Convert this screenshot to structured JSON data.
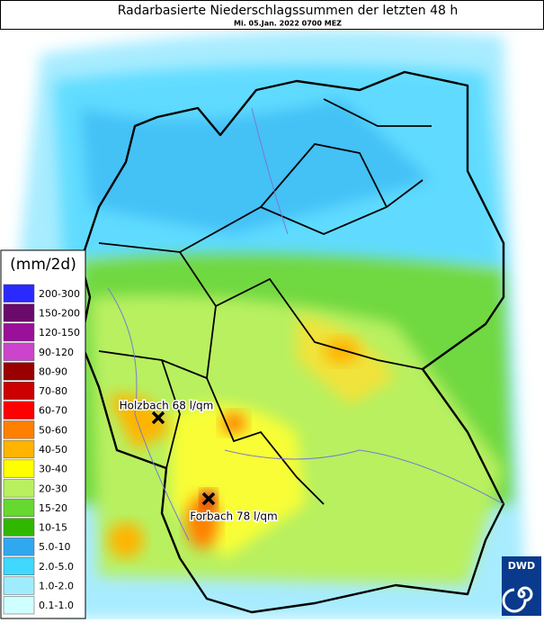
{
  "header": {
    "title": "Radarbasierte Niederschlagssummen der letzten 48 h",
    "subtitle": "Mi. 05.Jan. 2022 0700 MEZ"
  },
  "legend": {
    "title": "(mm/2d)",
    "items": [
      {
        "label": "200-300",
        "color": "#2a2aff"
      },
      {
        "label": "150-200",
        "color": "#6a0a6a"
      },
      {
        "label": "120-150",
        "color": "#9a109a"
      },
      {
        "label": "90-120",
        "color": "#cc44cc"
      },
      {
        "label": "80-90",
        "color": "#9a0000"
      },
      {
        "label": "70-80",
        "color": "#cc0000"
      },
      {
        "label": "60-70",
        "color": "#ff0000"
      },
      {
        "label": "50-60",
        "color": "#ff8000"
      },
      {
        "label": "40-50",
        "color": "#ffb400"
      },
      {
        "label": "30-40",
        "color": "#ffff00"
      },
      {
        "label": "20-30",
        "color": "#b8f060"
      },
      {
        "label": "15-20",
        "color": "#66d830"
      },
      {
        "label": "10-15",
        "color": "#30b800"
      },
      {
        "label": "5.0-10",
        "color": "#30a8f0"
      },
      {
        "label": "2.0-5.0",
        "color": "#40d8ff"
      },
      {
        "label": "1.0-2.0",
        "color": "#a0ecff"
      },
      {
        "label": "0.1-1.0",
        "color": "#d0ffff"
      }
    ]
  },
  "annotations": [
    {
      "label": "Holzbach 68 l/qm"
    },
    {
      "label": "Forbach 78 l/qm"
    }
  ],
  "logo": {
    "text": "DWD"
  }
}
